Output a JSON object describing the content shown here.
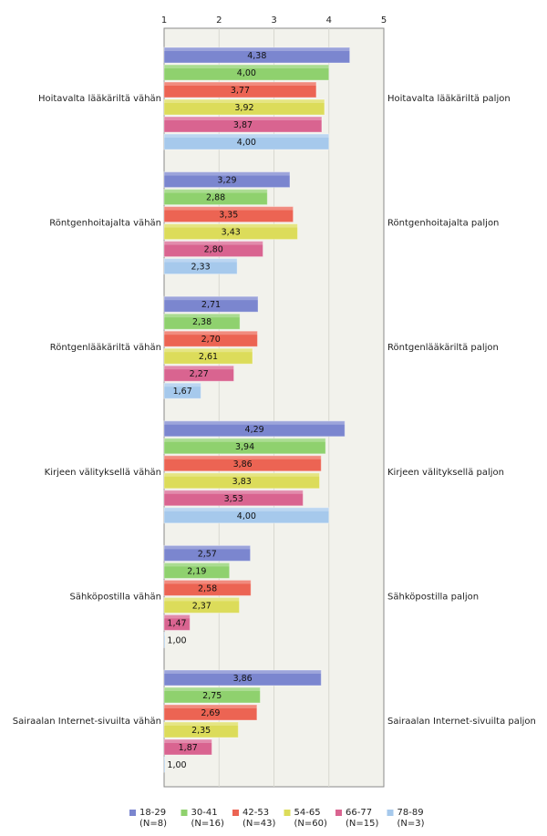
{
  "chart_data": {
    "type": "bar",
    "orientation": "horizontal",
    "xlim": [
      1,
      5
    ],
    "ticks": [
      "1",
      "2",
      "3",
      "4",
      "5"
    ],
    "categories": [
      {
        "left": "Hoitavalta lääkäriltä vähän",
        "right": "Hoitavalta lääkäriltä paljon"
      },
      {
        "left": "Röntgenhoitajalta vähän",
        "right": "Röntgenhoitajalta paljon"
      },
      {
        "left": "Röntgenlääkäriltä vähän",
        "right": "Röntgenlääkäriltä paljon"
      },
      {
        "left": "Kirjeen välityksellä vähän",
        "right": "Kirjeen välityksellä paljon"
      },
      {
        "left": "Sähköpostilla vähän",
        "right": "Sähköpostilla paljon"
      },
      {
        "left": "Sairaalan Internet-sivuilta vähän",
        "right": "Sairaalan Internet-sivuilta paljon"
      }
    ],
    "series": [
      {
        "name": "18-29",
        "n": "(N=8)",
        "color": "#7b86cf",
        "values": [
          4.38,
          3.29,
          2.71,
          4.29,
          2.57,
          3.86
        ],
        "labels": [
          "4,38",
          "3,29",
          "2,71",
          "4,29",
          "2,57",
          "3,86"
        ]
      },
      {
        "name": "30-41",
        "n": "(N=16)",
        "color": "#8fd16e",
        "values": [
          4.0,
          2.88,
          2.38,
          3.94,
          2.19,
          2.75
        ],
        "labels": [
          "4,00",
          "2,88",
          "2,38",
          "3,94",
          "2,19",
          "2,75"
        ]
      },
      {
        "name": "42-53",
        "n": "(N=43)",
        "color": "#ec6453",
        "values": [
          3.77,
          3.35,
          2.7,
          3.86,
          2.58,
          2.69
        ],
        "labels": [
          "3,77",
          "3,35",
          "2,70",
          "3,86",
          "2,58",
          "2,69"
        ]
      },
      {
        "name": "54-65",
        "n": "(N=60)",
        "color": "#dcdc5a",
        "values": [
          3.92,
          3.43,
          2.61,
          3.83,
          2.37,
          2.35
        ],
        "labels": [
          "3,92",
          "3,43",
          "2,61",
          "3,83",
          "2,37",
          "2,35"
        ]
      },
      {
        "name": "66-77",
        "n": "(N=15)",
        "color": "#d96490",
        "values": [
          3.87,
          2.8,
          2.27,
          3.53,
          1.47,
          1.87
        ],
        "labels": [
          "3,87",
          "2,80",
          "2,27",
          "3,53",
          "1,47",
          "1,87"
        ]
      },
      {
        "name": "78-89",
        "n": "(N=3)",
        "color": "#a6c9ec",
        "values": [
          4.0,
          2.33,
          1.67,
          4.0,
          1.0,
          1.0
        ],
        "labels": [
          "4,00",
          "2,33",
          "1,67",
          "4,00",
          "1,00",
          "1,00"
        ]
      }
    ],
    "legend_position": "bottom",
    "grid": true
  }
}
